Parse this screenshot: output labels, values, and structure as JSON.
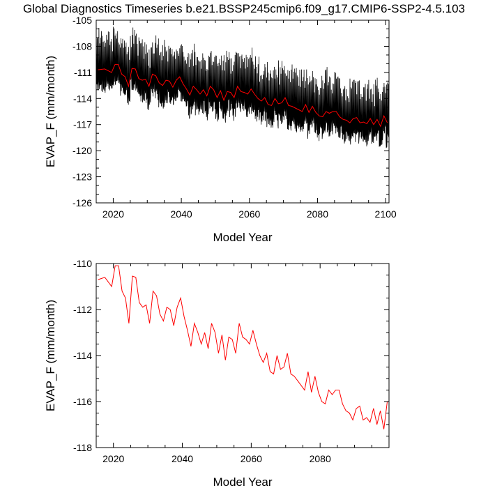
{
  "title": "Global Diagnostics Timeseries b.e21.BSSP245cmip6.f09_g17.CMIP6-SSP2-4.5.103",
  "colors": {
    "monthly": "#000000",
    "annual": "#ff0000",
    "axes": "#000000",
    "background": "#ffffff"
  },
  "chart_data": [
    {
      "type": "line",
      "xlabel": "Model Year",
      "ylabel": "EVAP_F (mm/month)",
      "xlim": [
        2015,
        2101
      ],
      "ylim": [
        -126,
        -105
      ],
      "xticks": [
        2020,
        2040,
        2060,
        2080,
        2100
      ],
      "yticks": [
        -126,
        -123,
        -120,
        -117,
        -114,
        -111,
        -108,
        -105
      ],
      "xtick_labels": [
        "2020",
        "2040",
        "2060",
        "2080",
        "2100"
      ],
      "ytick_labels": [
        "-126",
        "-123",
        "-120",
        "-117",
        "-114",
        "-111",
        "-108",
        "-105"
      ],
      "grid": false,
      "series": [
        {
          "style": "monthly",
          "color": "#000000",
          "x_start": 2015.04,
          "x_step": 0.0833333,
          "seasonal_amplitude": 4.0,
          "note_values": "monthly global-mean values oscillating about the annual mean with an amplitude of roughly 3-5 mm/month; minima near -118 to -123 late in the century, maxima near -106 to -109 early"
        },
        {
          "style": "annual",
          "color": "#ff0000",
          "x": [
            2015,
            2016,
            2017,
            2018,
            2019,
            2020,
            2021,
            2022,
            2023,
            2024,
            2025,
            2026,
            2027,
            2028,
            2029,
            2030,
            2031,
            2032,
            2033,
            2034,
            2035,
            2036,
            2037,
            2038,
            2039,
            2040,
            2041,
            2042,
            2043,
            2044,
            2045,
            2046,
            2047,
            2048,
            2049,
            2050,
            2051,
            2052,
            2053,
            2054,
            2055,
            2056,
            2057,
            2058,
            2059,
            2060,
            2061,
            2062,
            2063,
            2064,
            2065,
            2066,
            2067,
            2068,
            2069,
            2070,
            2071,
            2072,
            2073,
            2074,
            2075,
            2076,
            2077,
            2078,
            2079,
            2080,
            2081,
            2082,
            2083,
            2084,
            2085,
            2086,
            2087,
            2088,
            2089,
            2090,
            2091,
            2092,
            2093,
            2094,
            2095,
            2096,
            2097,
            2098,
            2099,
            2100
          ],
          "values": [
            -110.7,
            -110.65,
            -110.6,
            -110.8,
            -111.0,
            -110.1,
            -110.1,
            -111.2,
            -111.5,
            -112.6,
            -110.55,
            -110.6,
            -111.7,
            -111.9,
            -111.8,
            -112.6,
            -111.2,
            -111.4,
            -112.2,
            -112.5,
            -111.9,
            -112.0,
            -112.7,
            -111.9,
            -111.5,
            -112.3,
            -112.9,
            -113.6,
            -112.6,
            -113.0,
            -113.5,
            -113.0,
            -113.7,
            -112.6,
            -113.0,
            -113.9,
            -113.1,
            -114.2,
            -113.2,
            -113.3,
            -113.9,
            -112.6,
            -113.2,
            -113.3,
            -113.5,
            -112.9,
            -113.5,
            -114.0,
            -114.3,
            -113.9,
            -114.7,
            -114.8,
            -114.0,
            -114.6,
            -114.5,
            -113.9,
            -114.8,
            -114.9,
            -115.1,
            -115.3,
            -115.5,
            -114.7,
            -115.6,
            -114.9,
            -115.6,
            -116.0,
            -116.1,
            -115.5,
            -115.7,
            -115.5,
            -115.5,
            -116.1,
            -116.4,
            -116.5,
            -116.8,
            -116.3,
            -116.2,
            -116.8,
            -116.7,
            -116.9,
            -116.3,
            -117.0,
            -116.4,
            -117.2,
            -116.0,
            -116.8
          ]
        }
      ]
    },
    {
      "type": "line",
      "xlabel": "Model Year",
      "ylabel": "EVAP_F (mm/month)",
      "xlim": [
        2015,
        2100
      ],
      "ylim": [
        -118,
        -110
      ],
      "xticks": [
        2020,
        2040,
        2060,
        2080
      ],
      "yticks": [
        -118,
        -116,
        -114,
        -112,
        -110
      ],
      "xtick_labels": [
        "2020",
        "2040",
        "2060",
        "2080"
      ],
      "ytick_labels": [
        "-118",
        "-116",
        "-114",
        "-112",
        "-110"
      ],
      "grid": false,
      "series": [
        {
          "style": "annual",
          "color": "#ff0000",
          "x": [
            2015,
            2016,
            2017,
            2018,
            2019,
            2020,
            2021,
            2022,
            2023,
            2024,
            2025,
            2026,
            2027,
            2028,
            2029,
            2030,
            2031,
            2032,
            2033,
            2034,
            2035,
            2036,
            2037,
            2038,
            2039,
            2040,
            2041,
            2042,
            2043,
            2044,
            2045,
            2046,
            2047,
            2048,
            2049,
            2050,
            2051,
            2052,
            2053,
            2054,
            2055,
            2056,
            2057,
            2058,
            2059,
            2060,
            2061,
            2062,
            2063,
            2064,
            2065,
            2066,
            2067,
            2068,
            2069,
            2070,
            2071,
            2072,
            2073,
            2074,
            2075,
            2076,
            2077,
            2078,
            2079,
            2080,
            2081,
            2082,
            2083,
            2084,
            2085,
            2086,
            2087,
            2088,
            2089,
            2090,
            2091,
            2092,
            2093,
            2094,
            2095,
            2096,
            2097,
            2098,
            2099
          ],
          "values": [
            -110.7,
            -110.65,
            -110.6,
            -110.8,
            -111.0,
            -110.1,
            -110.1,
            -111.2,
            -111.5,
            -112.6,
            -110.55,
            -110.6,
            -111.7,
            -111.9,
            -111.8,
            -112.6,
            -111.2,
            -111.4,
            -112.2,
            -112.5,
            -111.9,
            -112.0,
            -112.7,
            -111.9,
            -111.5,
            -112.3,
            -112.9,
            -113.6,
            -112.6,
            -113.0,
            -113.5,
            -113.0,
            -113.7,
            -112.6,
            -113.0,
            -113.9,
            -113.1,
            -114.2,
            -113.2,
            -113.3,
            -113.9,
            -112.6,
            -113.2,
            -113.3,
            -113.5,
            -112.9,
            -113.5,
            -114.0,
            -114.3,
            -113.9,
            -114.7,
            -114.8,
            -114.0,
            -114.6,
            -114.5,
            -113.9,
            -114.8,
            -114.9,
            -115.1,
            -115.3,
            -115.5,
            -114.7,
            -115.6,
            -114.9,
            -115.6,
            -116.0,
            -116.1,
            -115.5,
            -115.7,
            -115.5,
            -115.5,
            -116.1,
            -116.4,
            -116.5,
            -116.8,
            -116.3,
            -116.2,
            -116.8,
            -116.7,
            -116.9,
            -116.3,
            -117.0,
            -116.4,
            -117.2,
            -116.0
          ]
        }
      ]
    }
  ]
}
